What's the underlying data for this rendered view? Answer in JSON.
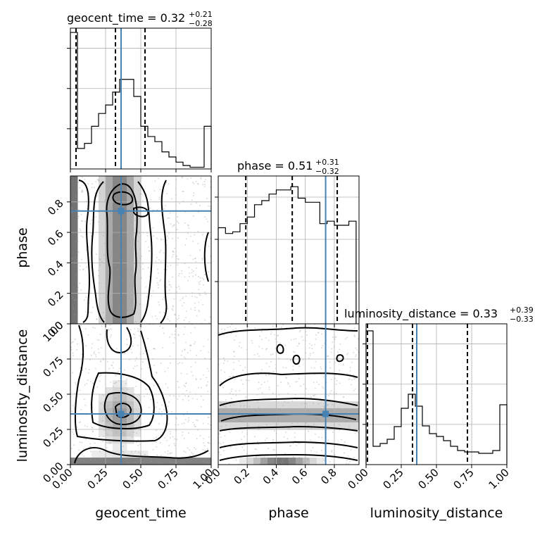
{
  "chart_data": {
    "type": "corner",
    "parameters": [
      "geocent_time",
      "phase",
      "luminosity_distance"
    ],
    "ranges": [
      [
        0,
        1
      ],
      [
        0,
        0.97
      ],
      [
        0,
        1
      ]
    ],
    "truths": [
      0.36,
      0.74,
      0.36
    ],
    "truth_color": "#4682b4",
    "x_ticks": [
      [
        "0.00",
        "0.25",
        "0.50",
        "0.75",
        "1.00"
      ],
      [
        "0.0",
        "0.2",
        "0.4",
        "0.6",
        "0.8"
      ],
      [
        "0.00",
        "0.25",
        "0.50",
        "0.75",
        "1.00"
      ]
    ],
    "y_ticks": {
      "phase": [
        "0.0",
        "0.2",
        "0.4",
        "0.6",
        "0.8"
      ],
      "luminosity_distance": [
        "0.00",
        "0.25",
        "0.50",
        "0.75",
        "1.00"
      ]
    },
    "diagonal": [
      {
        "param": "geocent_time",
        "title": "geocent_time = 0.32",
        "title_plus": "+0.21",
        "title_minus": "−0.28",
        "quantiles": [
          0.04,
          0.32,
          0.53
        ],
        "bin_edges": [
          0,
          0.05,
          0.1,
          0.15,
          0.2,
          0.25,
          0.3,
          0.35,
          0.4,
          0.45,
          0.5,
          0.55,
          0.6,
          0.65,
          0.7,
          0.75,
          0.8,
          0.85,
          0.9,
          0.95,
          1.0
        ],
        "counts": [
          1.6,
          0.24,
          0.3,
          0.5,
          0.65,
          0.75,
          0.9,
          1.05,
          1.05,
          0.85,
          0.5,
          0.38,
          0.32,
          0.2,
          0.14,
          0.08,
          0.04,
          0.02,
          0.02,
          0.5
        ],
        "ymax": 1.65
      },
      {
        "param": "phase",
        "title": "phase = 0.51",
        "title_plus": "+0.31",
        "title_minus": "−0.32",
        "quantiles": [
          0.19,
          0.51,
          0.82
        ],
        "bin_edges": [
          0,
          0.05,
          0.1,
          0.15,
          0.2,
          0.25,
          0.3,
          0.35,
          0.4,
          0.45,
          0.5,
          0.55,
          0.6,
          0.65,
          0.7,
          0.75,
          0.8,
          0.85,
          0.9,
          0.95
        ],
        "counts": [
          1.17,
          1.1,
          1.12,
          1.22,
          1.3,
          1.45,
          1.5,
          1.58,
          1.63,
          1.63,
          1.67,
          1.53,
          1.48,
          1.48,
          1.22,
          1.25,
          1.2,
          1.2,
          1.25
        ],
        "ymax": 1.8
      },
      {
        "param": "luminosity_distance",
        "title": "luminosity_distance = 0.33",
        "title_plus": "+0.39",
        "title_minus": "−0.33",
        "quantiles": [
          0.01,
          0.33,
          0.72
        ],
        "bin_edges": [
          0,
          0.05,
          0.1,
          0.15,
          0.2,
          0.25,
          0.3,
          0.35,
          0.4,
          0.45,
          0.5,
          0.55,
          0.6,
          0.65,
          0.7,
          0.75,
          0.8,
          0.85,
          0.9,
          0.95,
          1.0
        ],
        "counts": [
          1.9,
          0.26,
          0.3,
          0.36,
          0.54,
          0.8,
          1.0,
          0.83,
          0.55,
          0.44,
          0.4,
          0.34,
          0.26,
          0.2,
          0.18,
          0.18,
          0.16,
          0.16,
          0.2,
          0.85
        ],
        "ymax": 2.0
      }
    ],
    "pairs": [
      {
        "x": "geocent_time",
        "y": "phase"
      },
      {
        "x": "geocent_time",
        "y": "luminosity_distance"
      },
      {
        "x": "phase",
        "y": "luminosity_distance"
      }
    ],
    "grid": true
  }
}
